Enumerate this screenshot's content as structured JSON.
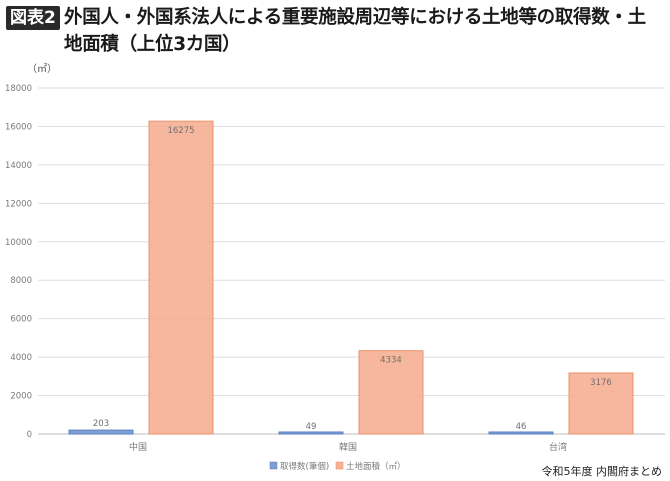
{
  "header": {
    "badge": "図表2",
    "title": "外国人・外国系法人による重要施設周辺等における土地等の取得数・土地面積（上位3カ国）"
  },
  "unit": "（㎡）",
  "source": "令和5年度 内閣府まとめ",
  "colors": {
    "series_count": "#7f9fd3",
    "series_count_stroke": "#5b7fc0",
    "series_area": "#f6b196",
    "series_area_stroke": "#e98c62"
  },
  "chart_data": {
    "type": "bar",
    "categories": [
      "中国",
      "韓国",
      "台湾"
    ],
    "series": [
      {
        "name": "取得数(筆個)",
        "values": [
          203,
          49,
          46
        ]
      },
      {
        "name": "土地面積（㎡）",
        "values": [
          16275,
          4334,
          3176
        ]
      }
    ],
    "ylim": [
      0,
      18000
    ],
    "yticks": [
      0,
      2000,
      4000,
      6000,
      8000,
      10000,
      12000,
      14000,
      16000,
      18000
    ],
    "grid": true,
    "legend": "bottom"
  }
}
